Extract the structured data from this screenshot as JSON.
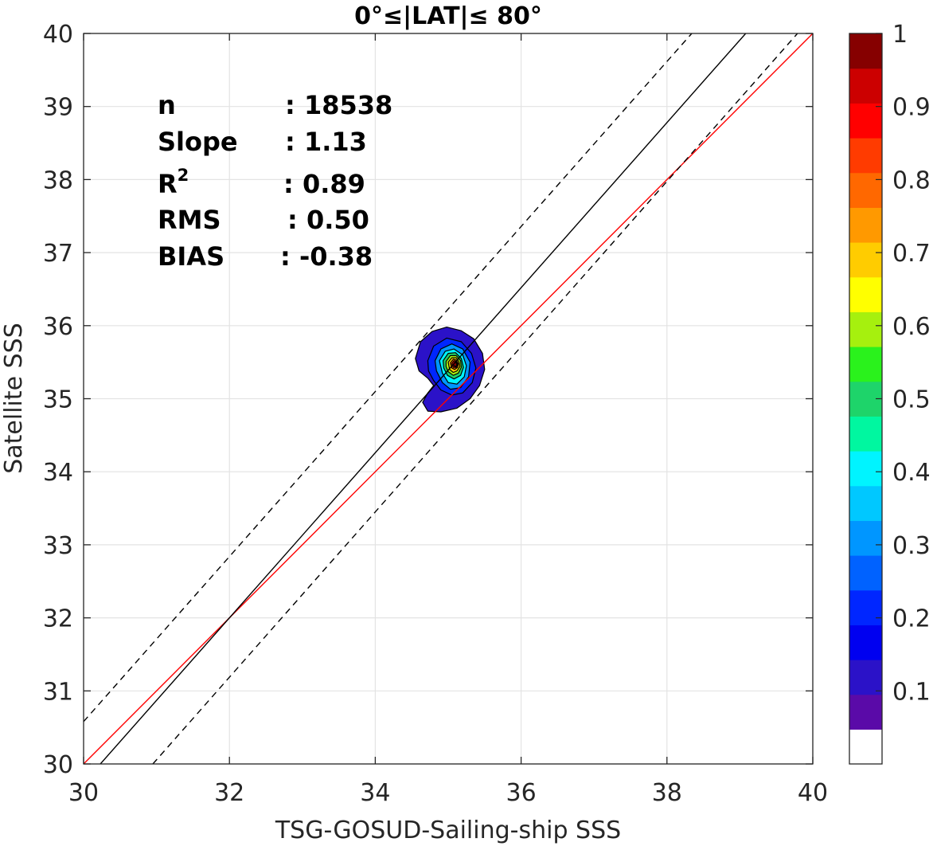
{
  "chart_data": {
    "type": "heatmap",
    "title": "0°≤|LAT|≤ 80°",
    "xlabel": "TSG-GOSUD-Sailing-ship SSS",
    "ylabel": "Satellite SSS",
    "xlim": [
      30,
      40
    ],
    "ylim": [
      30,
      40
    ],
    "xticks": [
      30,
      32,
      34,
      36,
      38,
      40
    ],
    "yticks": [
      30,
      31,
      32,
      33,
      34,
      35,
      36,
      37,
      38,
      39,
      40
    ],
    "grid": true,
    "stats": [
      {
        "label": "n",
        "value": ": 18538"
      },
      {
        "label": "Slope",
        "value": ": 1.13"
      },
      {
        "label": "R",
        "sup": "2",
        "value": ": 0.89"
      },
      {
        "label": "RMS",
        "value": ": 0.50"
      },
      {
        "label": "BIAS",
        "value": ": -0.38"
      }
    ],
    "lines": [
      {
        "name": "one-to-one",
        "style": "solid",
        "color": "#ff0000",
        "points": [
          [
            30,
            30
          ],
          [
            40,
            40
          ]
        ]
      },
      {
        "name": "regression",
        "style": "solid",
        "color": "#000000",
        "points": [
          [
            30.23,
            30
          ],
          [
            39.08,
            40
          ]
        ]
      },
      {
        "name": "upper-bound",
        "style": "dashed",
        "color": "#000000",
        "points": [
          [
            30,
            30.58
          ],
          [
            38.34,
            40
          ]
        ]
      },
      {
        "name": "lower-bound",
        "style": "dashed",
        "color": "#000000",
        "points": [
          [
            30.95,
            30
          ],
          [
            39.79,
            40
          ]
        ]
      }
    ],
    "density": {
      "peak": [
        35.1,
        35.47
      ],
      "contours": [
        {
          "level": 0.05,
          "points": [
            [
              34.55,
              35.55
            ],
            [
              34.62,
              35.78
            ],
            [
              34.78,
              35.92
            ],
            [
              34.98,
              35.98
            ],
            [
              35.18,
              35.93
            ],
            [
              35.35,
              35.82
            ],
            [
              35.47,
              35.62
            ],
            [
              35.5,
              35.4
            ],
            [
              35.43,
              35.18
            ],
            [
              35.3,
              35.0
            ],
            [
              35.12,
              34.87
            ],
            [
              34.9,
              34.82
            ],
            [
              34.72,
              34.83
            ],
            [
              34.65,
              34.95
            ],
            [
              34.72,
              35.08
            ],
            [
              34.8,
              35.18
            ],
            [
              34.72,
              35.28
            ],
            [
              34.6,
              35.38
            ]
          ]
        },
        {
          "level": 0.15,
          "points": [
            [
              34.72,
              35.52
            ],
            [
              34.8,
              35.72
            ],
            [
              34.98,
              35.83
            ],
            [
              35.18,
              35.78
            ],
            [
              35.32,
              35.62
            ],
            [
              35.38,
              35.42
            ],
            [
              35.33,
              35.22
            ],
            [
              35.2,
              35.08
            ],
            [
              35.05,
              35.05
            ],
            [
              34.9,
              35.12
            ],
            [
              34.8,
              35.25
            ],
            [
              34.73,
              35.38
            ]
          ]
        },
        {
          "level": 0.25,
          "points": [
            [
              34.82,
              35.52
            ],
            [
              34.9,
              35.68
            ],
            [
              35.05,
              35.75
            ],
            [
              35.2,
              35.68
            ],
            [
              35.3,
              35.5
            ],
            [
              35.28,
              35.3
            ],
            [
              35.17,
              35.15
            ],
            [
              35.03,
              35.13
            ],
            [
              34.92,
              35.22
            ],
            [
              34.84,
              35.38
            ]
          ]
        },
        {
          "level": 0.35,
          "points": [
            [
              34.88,
              35.52
            ],
            [
              34.96,
              35.65
            ],
            [
              35.08,
              35.68
            ],
            [
              35.2,
              35.6
            ],
            [
              35.25,
              35.45
            ],
            [
              35.22,
              35.3
            ],
            [
              35.12,
              35.2
            ],
            [
              35.0,
              35.22
            ],
            [
              34.92,
              35.35
            ]
          ]
        },
        {
          "level": 0.45,
          "points": [
            [
              34.93,
              35.52
            ],
            [
              35.0,
              35.62
            ],
            [
              35.1,
              35.63
            ],
            [
              35.18,
              35.55
            ],
            [
              35.21,
              35.43
            ],
            [
              35.17,
              35.32
            ],
            [
              35.08,
              35.27
            ],
            [
              34.99,
              35.32
            ],
            [
              34.94,
              35.42
            ]
          ]
        },
        {
          "level": 0.55,
          "points": [
            [
              34.97,
              35.51
            ],
            [
              35.03,
              35.59
            ],
            [
              35.11,
              35.59
            ],
            [
              35.17,
              35.52
            ],
            [
              35.18,
              35.43
            ],
            [
              35.14,
              35.35
            ],
            [
              35.07,
              35.32
            ],
            [
              35.0,
              35.37
            ],
            [
              34.97,
              35.44
            ]
          ]
        },
        {
          "level": 0.65,
          "points": [
            [
              35.0,
              35.5
            ],
            [
              35.05,
              35.56
            ],
            [
              35.11,
              35.56
            ],
            [
              35.15,
              35.5
            ],
            [
              35.16,
              35.44
            ],
            [
              35.12,
              35.38
            ],
            [
              35.07,
              35.36
            ],
            [
              35.02,
              35.4
            ]
          ]
        },
        {
          "level": 0.75,
          "points": [
            [
              35.03,
              35.49
            ],
            [
              35.07,
              35.54
            ],
            [
              35.11,
              35.53
            ],
            [
              35.14,
              35.48
            ],
            [
              35.13,
              35.43
            ],
            [
              35.09,
              35.4
            ],
            [
              35.05,
              35.42
            ]
          ]
        },
        {
          "level": 0.85,
          "points": [
            [
              35.05,
              35.48
            ],
            [
              35.08,
              35.52
            ],
            [
              35.11,
              35.51
            ],
            [
              35.13,
              35.47
            ],
            [
              35.11,
              35.43
            ],
            [
              35.07,
              35.43
            ]
          ]
        },
        {
          "level": 0.95,
          "points": [
            [
              35.07,
              35.47
            ],
            [
              35.09,
              35.5
            ],
            [
              35.11,
              35.49
            ],
            [
              35.12,
              35.46
            ],
            [
              35.1,
              35.44
            ],
            [
              35.08,
              35.45
            ]
          ]
        }
      ]
    },
    "colorbar": {
      "ticks": [
        "0.1",
        "0.2",
        "0.3",
        "0.4",
        "0.5",
        "0.6",
        "0.7",
        "0.8",
        "0.9",
        "1"
      ],
      "colors": [
        "#ffffff",
        "#5a0aa8",
        "#2b12c8",
        "#0000f0",
        "#0026ff",
        "#0062ff",
        "#0096ff",
        "#00c8ff",
        "#00f4ff",
        "#00f7a0",
        "#1ed46a",
        "#2af21c",
        "#a6f00e",
        "#ffff00",
        "#ffcc00",
        "#ff9900",
        "#ff6800",
        "#ff3b00",
        "#ff0000",
        "#cc0000",
        "#860000"
      ]
    }
  }
}
